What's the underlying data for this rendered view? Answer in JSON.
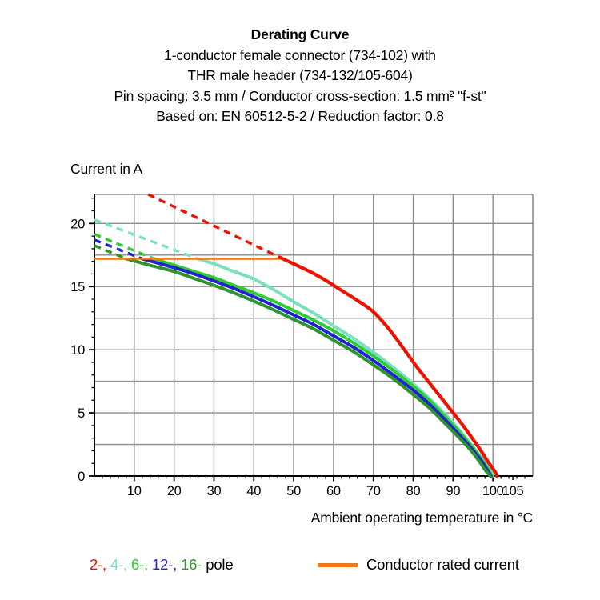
{
  "header": {
    "lines": [
      "Derating Curve",
      "1-conductor female connector (734-102) with",
      "THR male header (734-132/105-604)",
      "Pin spacing: 3.5 mm / Conductor cross-section: 1.5 mm² \"f-st\"",
      "Based on: EN 60512-5-2 / Reduction factor: 0.8"
    ]
  },
  "chart_data": {
    "type": "line",
    "title": "Derating Curve",
    "xlabel": "Ambient operating temperature in °C",
    "ylabel": "Current in A",
    "xlim": [
      0,
      110
    ],
    "ylim": [
      0,
      22.3
    ],
    "x_major_ticks": [
      10,
      20,
      30,
      40,
      50,
      60,
      70,
      80,
      90,
      100
    ],
    "x_extra_labeled_tick": 105,
    "x_minor_tick_step": 2,
    "y_major_ticks": [
      0,
      5,
      10,
      15,
      20
    ],
    "y_minor_tick_step": 1,
    "y_gridline_step": 2.5,
    "x_gridline_step": 10,
    "grid": true,
    "grid_color": "#8c8c8c",
    "axis_color": "#000000",
    "rated_current": {
      "label": "Conductor rated current",
      "value_A": 17.2,
      "x_range": [
        0,
        46.6
      ],
      "color": "#F07818"
    },
    "series": [
      {
        "name": "2-pole",
        "color": "#EE1100",
        "dashed": [
          [
            13.5,
            22.3
          ],
          [
            46.6,
            17.3
          ]
        ],
        "solid": [
          [
            46.6,
            17.3
          ],
          [
            50,
            16.8
          ],
          [
            54,
            16.2
          ],
          [
            58,
            15.5
          ],
          [
            62,
            14.7
          ],
          [
            66,
            13.9
          ],
          [
            70,
            13.0
          ],
          [
            74,
            11.6
          ],
          [
            78,
            9.9
          ],
          [
            81,
            8.6
          ],
          [
            84,
            7.4
          ],
          [
            87,
            6.2
          ],
          [
            90,
            5.0
          ],
          [
            92.5,
            4.0
          ],
          [
            95,
            2.9
          ],
          [
            96.8,
            2.1
          ],
          [
            98.2,
            1.4
          ],
          [
            99.5,
            0.8
          ],
          [
            100.6,
            0.3
          ],
          [
            101,
            0
          ]
        ]
      },
      {
        "name": "4-pole",
        "color": "#7CDFC2",
        "dashed": [
          [
            0,
            20.3
          ],
          [
            26,
            17.2
          ]
        ],
        "solid": [
          [
            26,
            17.2
          ],
          [
            30,
            16.8
          ],
          [
            35,
            16.2
          ],
          [
            40,
            15.6
          ],
          [
            45,
            14.75
          ],
          [
            50,
            13.8
          ],
          [
            55,
            12.9
          ],
          [
            60,
            11.9
          ],
          [
            65,
            10.9
          ],
          [
            70,
            9.8
          ],
          [
            75,
            8.6
          ],
          [
            80,
            7.3
          ],
          [
            84,
            6.15
          ],
          [
            88,
            4.9
          ],
          [
            91,
            3.85
          ],
          [
            94,
            2.7
          ],
          [
            97,
            1.5
          ],
          [
            98.8,
            0.7
          ],
          [
            100,
            0
          ]
        ]
      },
      {
        "name": "6-pole",
        "color": "#30CC30",
        "dashed": [
          [
            0,
            19.15
          ],
          [
            15,
            17.2
          ]
        ],
        "solid": [
          [
            15,
            17.2
          ],
          [
            20,
            16.7
          ],
          [
            25,
            16.2
          ],
          [
            30,
            15.7
          ],
          [
            35,
            15.1
          ],
          [
            40,
            14.5
          ],
          [
            45,
            13.85
          ],
          [
            50,
            13.1
          ],
          [
            55,
            12.35
          ],
          [
            60,
            11.5
          ],
          [
            65,
            10.55
          ],
          [
            70,
            9.5
          ],
          [
            75,
            8.35
          ],
          [
            80,
            7.1
          ],
          [
            84,
            6.0
          ],
          [
            88,
            4.7
          ],
          [
            91,
            3.7
          ],
          [
            94,
            2.6
          ],
          [
            97,
            1.4
          ],
          [
            98.7,
            0.6
          ],
          [
            99.7,
            0
          ]
        ]
      },
      {
        "name": "12-pole",
        "color": "#2222D0",
        "dashed": [
          [
            0,
            18.7
          ],
          [
            12,
            17.2
          ]
        ],
        "solid": [
          [
            12,
            17.2
          ],
          [
            20,
            16.5
          ],
          [
            25,
            16.0
          ],
          [
            30,
            15.45
          ],
          [
            35,
            14.85
          ],
          [
            40,
            14.2
          ],
          [
            45,
            13.5
          ],
          [
            50,
            12.75
          ],
          [
            55,
            12.0
          ],
          [
            60,
            11.1
          ],
          [
            65,
            10.2
          ],
          [
            70,
            9.15
          ],
          [
            75,
            8.0
          ],
          [
            80,
            6.8
          ],
          [
            84,
            5.7
          ],
          [
            88,
            4.45
          ],
          [
            91,
            3.45
          ],
          [
            94,
            2.4
          ],
          [
            97,
            1.25
          ],
          [
            98.5,
            0.5
          ],
          [
            99.5,
            0
          ]
        ]
      },
      {
        "name": "16-pole",
        "color": "#2E9430",
        "dashed": [
          [
            0,
            18.25
          ],
          [
            8,
            17.2
          ]
        ],
        "solid": [
          [
            8,
            17.2
          ],
          [
            15,
            16.6
          ],
          [
            20,
            16.2
          ],
          [
            25,
            15.65
          ],
          [
            30,
            15.1
          ],
          [
            35,
            14.5
          ],
          [
            40,
            13.85
          ],
          [
            45,
            13.15
          ],
          [
            50,
            12.4
          ],
          [
            55,
            11.65
          ],
          [
            60,
            10.75
          ],
          [
            65,
            9.85
          ],
          [
            70,
            8.8
          ],
          [
            75,
            7.7
          ],
          [
            80,
            6.45
          ],
          [
            84,
            5.4
          ],
          [
            88,
            4.15
          ],
          [
            91,
            3.2
          ],
          [
            94,
            2.2
          ],
          [
            96.5,
            1.2
          ],
          [
            98,
            0.5
          ],
          [
            99.3,
            0
          ]
        ]
      }
    ]
  },
  "legend": {
    "pole_parts": [
      {
        "text": "2-,",
        "color": "#EE1100"
      },
      {
        "text": "4-,",
        "color": "#7CDFC2"
      },
      {
        "text": "6-,",
        "color": "#30CC30"
      },
      {
        "text": "12-,",
        "color": "#2222D0"
      },
      {
        "text": "16-",
        "color": "#2E9430"
      },
      {
        "text": "pole",
        "color": "#000000"
      }
    ],
    "rated_label": "Conductor rated current"
  }
}
